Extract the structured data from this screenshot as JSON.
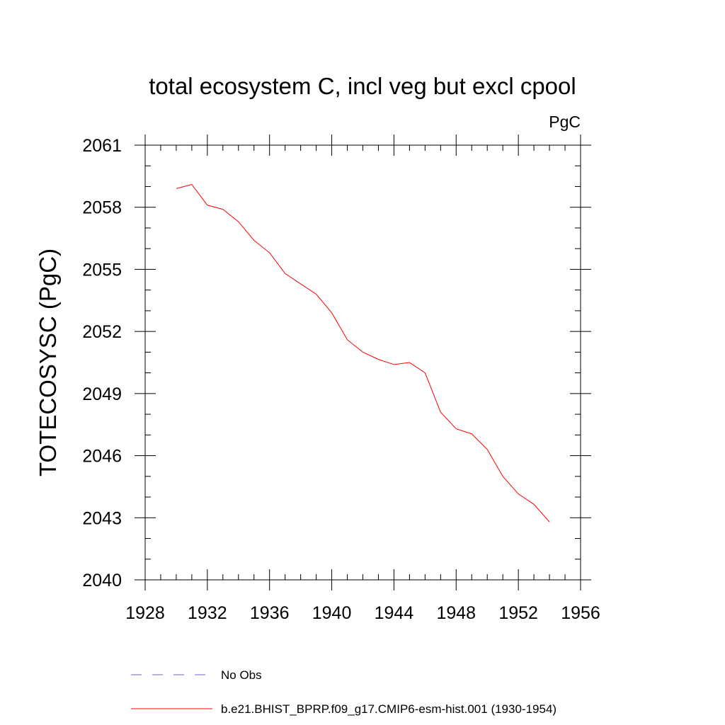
{
  "chart_data": {
    "type": "line",
    "title": "total ecosystem C, incl veg but excl cpool",
    "units": "PgC",
    "ylabel": "TOTECOSYSC  (PgC)",
    "xlabel": "",
    "xlim": [
      1928,
      1956
    ],
    "ylim": [
      2040,
      2061
    ],
    "xticks": [
      1928,
      1932,
      1936,
      1940,
      1944,
      1948,
      1952,
      1956
    ],
    "yticks": [
      2040,
      2043,
      2046,
      2049,
      2052,
      2055,
      2058,
      2061
    ],
    "x_minor_step": 1,
    "y_minor_step": 1,
    "grid": false,
    "legend_position": "bottom",
    "series": [
      {
        "name": "b.e21.BHIST_BPRP.f09_g17.CMIP6-esm-hist.001 (1930-1954)",
        "color": "#ff0000",
        "style": "solid",
        "x": [
          1930,
          1931,
          1932,
          1933,
          1934,
          1935,
          1936,
          1937,
          1938,
          1939,
          1940,
          1941,
          1942,
          1943,
          1944,
          1945,
          1946,
          1947,
          1948,
          1949,
          1950,
          1951,
          1952,
          1953,
          1954
        ],
        "y": [
          2058.9,
          2059.1,
          2058.1,
          2057.9,
          2057.3,
          2056.4,
          2055.8,
          2054.8,
          2054.3,
          2053.8,
          2052.9,
          2051.6,
          2051.0,
          2050.65,
          2050.4,
          2050.5,
          2050.0,
          2048.1,
          2047.3,
          2047.05,
          2046.3,
          2045.0,
          2044.15,
          2043.65,
          2042.8
        ]
      },
      {
        "name": "No Obs",
        "color": "#6666cc",
        "style": "dashed",
        "x": [],
        "y": []
      }
    ]
  }
}
